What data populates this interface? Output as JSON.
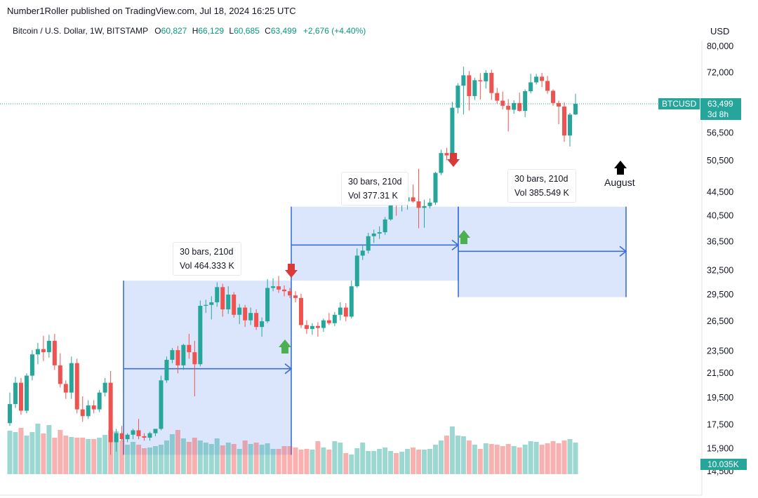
{
  "header": {
    "publisher": "Number1Roller published on TradingView.com, Jul 18, 2024 16:25 UTC",
    "symbol_name": "Bitcoin / U.S. Dollar, 1W, BITSTAMP",
    "open_label": "O",
    "open": "60,827",
    "high_label": "H",
    "high": "66,129",
    "low_label": "L",
    "low": "60,685",
    "close_label": "C",
    "close": "63,499",
    "change": "+2,676 (+4.40%)",
    "currency": "USD"
  },
  "price_tag": {
    "ticker": "BTCUSD",
    "price": "63,499",
    "countdown": "3d 8h"
  },
  "volume_tag": "10.035K",
  "annotations": {
    "range1": {
      "bars": "30 bars, 210d",
      "vol": "Vol 464.333 K"
    },
    "range2": {
      "bars": "30 bars, 210d",
      "vol": "Vol 377.31 K"
    },
    "range3": {
      "bars": "30 bars, 210d",
      "vol": "Vol 385.549 K"
    },
    "august": "August"
  },
  "colors": {
    "up": "#26a69a",
    "down": "#ef5350",
    "range_fill": "#cfdcfb",
    "range_line": "#3b6fd4",
    "arrow_up": "#4caf50",
    "arrow_down": "#d83a3a"
  },
  "chart_data": {
    "type": "candlestick",
    "scale": "log",
    "y_axis_ticks": [
      "80,000",
      "72,000",
      "56,500",
      "50,500",
      "44,500",
      "40,500",
      "36,500",
      "32,500",
      "29,500",
      "26,500",
      "23,500",
      "21,500",
      "19,500",
      "17,500",
      "15,900",
      "14,500"
    ],
    "ylim": [
      14000,
      84000
    ],
    "candles": [
      {
        "o": 17600,
        "h": 19900,
        "l": 17400,
        "c": 19000
      },
      {
        "o": 19000,
        "h": 21200,
        "l": 18700,
        "c": 20700
      },
      {
        "o": 20700,
        "h": 21100,
        "l": 18200,
        "c": 18500
      },
      {
        "o": 18500,
        "h": 21500,
        "l": 18300,
        "c": 21300
      },
      {
        "o": 21300,
        "h": 23600,
        "l": 20900,
        "c": 23200
      },
      {
        "o": 23200,
        "h": 24300,
        "l": 22300,
        "c": 23700
      },
      {
        "o": 23700,
        "h": 25000,
        "l": 22600,
        "c": 23400
      },
      {
        "o": 23400,
        "h": 25100,
        "l": 22900,
        "c": 24500
      },
      {
        "o": 24500,
        "h": 25200,
        "l": 21800,
        "c": 22200
      },
      {
        "o": 22200,
        "h": 23300,
        "l": 20300,
        "c": 20600
      },
      {
        "o": 20600,
        "h": 20900,
        "l": 19400,
        "c": 19900
      },
      {
        "o": 19900,
        "h": 23000,
        "l": 19400,
        "c": 22400
      },
      {
        "o": 22400,
        "h": 22800,
        "l": 18300,
        "c": 18600
      },
      {
        "o": 18600,
        "h": 19600,
        "l": 17700,
        "c": 18100
      },
      {
        "o": 18100,
        "h": 19300,
        "l": 17900,
        "c": 18900
      },
      {
        "o": 18900,
        "h": 19300,
        "l": 18300,
        "c": 18600
      },
      {
        "o": 18600,
        "h": 20100,
        "l": 18400,
        "c": 19900
      },
      {
        "o": 19900,
        "h": 21100,
        "l": 19600,
        "c": 20700
      },
      {
        "o": 20700,
        "h": 21700,
        "l": 15500,
        "c": 16300
      },
      {
        "o": 16300,
        "h": 17200,
        "l": 15700,
        "c": 16900
      },
      {
        "o": 16900,
        "h": 17400,
        "l": 16400,
        "c": 16500
      },
      {
        "o": 16500,
        "h": 16900,
        "l": 16300,
        "c": 16800
      },
      {
        "o": 16800,
        "h": 17200,
        "l": 16500,
        "c": 17100
      },
      {
        "o": 17100,
        "h": 17900,
        "l": 16500,
        "c": 16700
      },
      {
        "o": 16700,
        "h": 16900,
        "l": 16400,
        "c": 16600
      },
      {
        "o": 16600,
        "h": 17000,
        "l": 16400,
        "c": 16900
      },
      {
        "o": 16900,
        "h": 17100,
        "l": 16700,
        "c": 17200
      },
      {
        "o": 17200,
        "h": 21300,
        "l": 17100,
        "c": 20900
      },
      {
        "o": 20900,
        "h": 23000,
        "l": 20700,
        "c": 22700
      },
      {
        "o": 22700,
        "h": 23800,
        "l": 22400,
        "c": 23600
      },
      {
        "o": 23600,
        "h": 24000,
        "l": 21500,
        "c": 22200
      },
      {
        "o": 22200,
        "h": 24200,
        "l": 21800,
        "c": 24100
      },
      {
        "o": 24100,
        "h": 25200,
        "l": 22800,
        "c": 23400
      },
      {
        "o": 23400,
        "h": 24500,
        "l": 19600,
        "c": 22300
      },
      {
        "o": 22300,
        "h": 28800,
        "l": 22100,
        "c": 28200
      },
      {
        "o": 28200,
        "h": 28900,
        "l": 27400,
        "c": 28300
      },
      {
        "o": 28300,
        "h": 29300,
        "l": 26700,
        "c": 28600
      },
      {
        "o": 28600,
        "h": 31000,
        "l": 28100,
        "c": 30400
      },
      {
        "o": 30400,
        "h": 30800,
        "l": 27000,
        "c": 27800
      },
      {
        "o": 27800,
        "h": 30500,
        "l": 27300,
        "c": 29500
      },
      {
        "o": 29500,
        "h": 29800,
        "l": 26900,
        "c": 27200
      },
      {
        "o": 27200,
        "h": 28400,
        "l": 26200,
        "c": 28000
      },
      {
        "o": 28000,
        "h": 28300,
        "l": 25900,
        "c": 26600
      },
      {
        "o": 26600,
        "h": 28000,
        "l": 26100,
        "c": 27400
      },
      {
        "o": 27400,
        "h": 27800,
        "l": 25600,
        "c": 25900
      },
      {
        "o": 25900,
        "h": 26900,
        "l": 24900,
        "c": 26500
      },
      {
        "o": 26500,
        "h": 31400,
        "l": 26300,
        "c": 30300
      },
      {
        "o": 30300,
        "h": 31500,
        "l": 29900,
        "c": 30500
      },
      {
        "o": 30500,
        "h": 31800,
        "l": 29700,
        "c": 30100
      },
      {
        "o": 30100,
        "h": 30600,
        "l": 29300,
        "c": 29900
      },
      {
        "o": 29900,
        "h": 30300,
        "l": 29100,
        "c": 29400
      },
      {
        "o": 29400,
        "h": 29900,
        "l": 28600,
        "c": 29100
      },
      {
        "o": 29100,
        "h": 29600,
        "l": 25800,
        "c": 26100
      },
      {
        "o": 26100,
        "h": 26600,
        "l": 25200,
        "c": 25700
      },
      {
        "o": 25700,
        "h": 26300,
        "l": 25100,
        "c": 26000
      },
      {
        "o": 26000,
        "h": 26400,
        "l": 24900,
        "c": 25800
      },
      {
        "o": 25800,
        "h": 26800,
        "l": 25400,
        "c": 26600
      },
      {
        "o": 26600,
        "h": 27400,
        "l": 26100,
        "c": 26300
      },
      {
        "o": 26300,
        "h": 27500,
        "l": 26000,
        "c": 27200
      },
      {
        "o": 27200,
        "h": 28600,
        "l": 26600,
        "c": 28000
      },
      {
        "o": 28000,
        "h": 28500,
        "l": 26500,
        "c": 27000
      },
      {
        "o": 27000,
        "h": 31200,
        "l": 26800,
        "c": 30500
      },
      {
        "o": 30500,
        "h": 35500,
        "l": 30300,
        "c": 34500
      },
      {
        "o": 34500,
        "h": 35900,
        "l": 33900,
        "c": 35200
      },
      {
        "o": 35200,
        "h": 37800,
        "l": 34800,
        "c": 37300
      },
      {
        "o": 37300,
        "h": 38300,
        "l": 36300,
        "c": 37700
      },
      {
        "o": 37700,
        "h": 38800,
        "l": 36900,
        "c": 37900
      },
      {
        "o": 37900,
        "h": 40300,
        "l": 37500,
        "c": 39900
      },
      {
        "o": 39900,
        "h": 44600,
        "l": 39700,
        "c": 43900
      },
      {
        "o": 43900,
        "h": 45400,
        "l": 40500,
        "c": 42300
      },
      {
        "o": 42300,
        "h": 44100,
        "l": 41200,
        "c": 42900
      },
      {
        "o": 42900,
        "h": 43800,
        "l": 41500,
        "c": 43600
      },
      {
        "o": 43600,
        "h": 45900,
        "l": 42700,
        "c": 42900
      },
      {
        "o": 42900,
        "h": 48900,
        "l": 38500,
        "c": 41800
      },
      {
        "o": 41800,
        "h": 43200,
        "l": 38600,
        "c": 42100
      },
      {
        "o": 42100,
        "h": 43400,
        "l": 41700,
        "c": 42700
      },
      {
        "o": 42700,
        "h": 48300,
        "l": 42300,
        "c": 48100
      },
      {
        "o": 48100,
        "h": 52800,
        "l": 47700,
        "c": 52100
      },
      {
        "o": 52100,
        "h": 53200,
        "l": 50600,
        "c": 51600
      },
      {
        "o": 51600,
        "h": 64000,
        "l": 51300,
        "c": 62500
      },
      {
        "o": 62500,
        "h": 69000,
        "l": 61100,
        "c": 68300
      },
      {
        "o": 68300,
        "h": 73700,
        "l": 60800,
        "c": 71200
      },
      {
        "o": 71200,
        "h": 72400,
        "l": 61800,
        "c": 65500
      },
      {
        "o": 65500,
        "h": 70500,
        "l": 64500,
        "c": 69800
      },
      {
        "o": 69800,
        "h": 71800,
        "l": 64600,
        "c": 69500
      },
      {
        "o": 69500,
        "h": 72700,
        "l": 67500,
        "c": 71900
      },
      {
        "o": 71900,
        "h": 72800,
        "l": 64500,
        "c": 66300
      },
      {
        "o": 66300,
        "h": 67700,
        "l": 63500,
        "c": 64300
      },
      {
        "o": 64300,
        "h": 66700,
        "l": 62100,
        "c": 63000
      },
      {
        "o": 63000,
        "h": 64700,
        "l": 56800,
        "c": 62000
      },
      {
        "o": 62000,
        "h": 64400,
        "l": 61000,
        "c": 63700
      },
      {
        "o": 63700,
        "h": 66400,
        "l": 61500,
        "c": 61700
      },
      {
        "o": 61700,
        "h": 67300,
        "l": 60200,
        "c": 66800
      },
      {
        "o": 66800,
        "h": 71600,
        "l": 66200,
        "c": 69200
      },
      {
        "o": 69200,
        "h": 71600,
        "l": 68600,
        "c": 70800
      },
      {
        "o": 70800,
        "h": 71900,
        "l": 67900,
        "c": 69600
      },
      {
        "o": 69600,
        "h": 71000,
        "l": 66100,
        "c": 66900
      },
      {
        "o": 66900,
        "h": 67300,
        "l": 63000,
        "c": 63700
      },
      {
        "o": 63700,
        "h": 64300,
        "l": 58500,
        "c": 62800
      },
      {
        "o": 62800,
        "h": 63900,
        "l": 54500,
        "c": 55900
      },
      {
        "o": 55900,
        "h": 61200,
        "l": 53500,
        "c": 60800
      },
      {
        "o": 60827,
        "h": 66129,
        "l": 60685,
        "c": 63499
      }
    ],
    "volumes": [
      0.62,
      0.6,
      0.66,
      0.55,
      0.6,
      0.72,
      0.58,
      0.7,
      0.52,
      0.63,
      0.55,
      0.53,
      0.52,
      0.52,
      0.5,
      0.5,
      0.52,
      0.56,
      0.63,
      0.61,
      0.48,
      0.42,
      0.46,
      0.42,
      0.37,
      0.38,
      0.4,
      0.42,
      0.48,
      0.57,
      0.63,
      0.51,
      0.46,
      0.52,
      0.48,
      0.45,
      0.43,
      0.51,
      0.41,
      0.45,
      0.43,
      0.36,
      0.48,
      0.43,
      0.45,
      0.42,
      0.44,
      0.36,
      0.36,
      0.4,
      0.4,
      0.38,
      0.35,
      0.36,
      0.35,
      0.47,
      0.38,
      0.35,
      0.47,
      0.45,
      0.3,
      0.28,
      0.37,
      0.45,
      0.33,
      0.33,
      0.36,
      0.38,
      0.33,
      0.3,
      0.32,
      0.36,
      0.38,
      0.35,
      0.35,
      0.36,
      0.42,
      0.48,
      0.55,
      0.68,
      0.55,
      0.54,
      0.48,
      0.42,
      0.36,
      0.44,
      0.43,
      0.42,
      0.4,
      0.43,
      0.4,
      0.38,
      0.42,
      0.47,
      0.46,
      0.42,
      0.44,
      0.47,
      0.44,
      0.48,
      0.5,
      0.45
    ],
    "volume_scale_note": "relative (volume panel)",
    "measures": [
      {
        "label": "30 bars, 210d",
        "volume": "Vol 464.333 K",
        "price_low": 15500,
        "price_high": 31200
      },
      {
        "label": "30 bars, 210d",
        "volume": "Vol 377.31 K",
        "price_low": 31200,
        "price_high": 42000
      },
      {
        "label": "30 bars, 210d",
        "volume": "Vol 385.549 K",
        "price_low": 29200,
        "price_high": 42000
      }
    ]
  }
}
